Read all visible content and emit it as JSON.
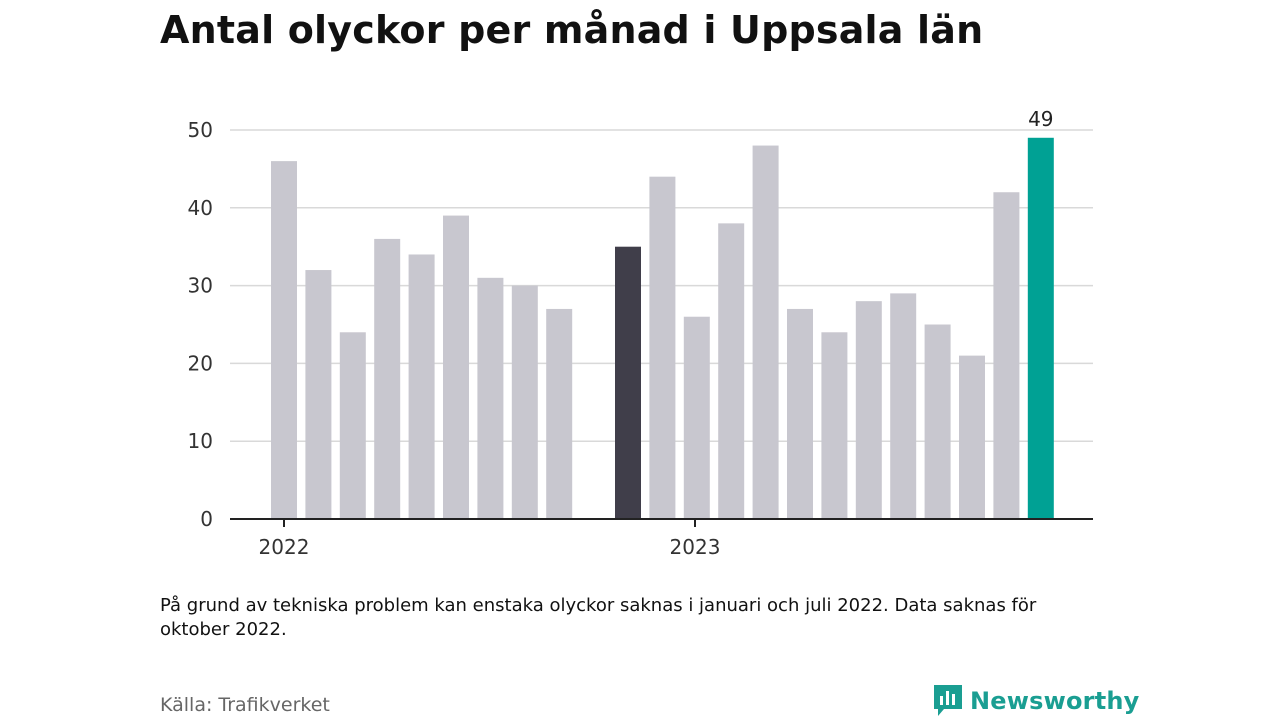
{
  "title": "Antal olyckor per månad i Uppsala län",
  "footnote": "På grund av tekniska problem kan enstaka olyckor saknas i januari och juli 2022. Data saknas för oktober 2022.",
  "source": "Källa: Trafikverket",
  "brand": {
    "name": "Newsworthy",
    "color": "#1a9e92",
    "icon": "newsworthy-logo-icon"
  },
  "chart_data": {
    "type": "bar",
    "ylim": [
      0,
      50
    ],
    "yticks": [
      0,
      10,
      20,
      30,
      40,
      50
    ],
    "grid": true,
    "year_labels": [
      {
        "label": "2022",
        "at_bar": 0
      },
      {
        "label": "2023",
        "at_bar": 12
      }
    ],
    "bars": [
      {
        "month": "2022-01",
        "value": 46
      },
      {
        "month": "2022-02",
        "value": 32
      },
      {
        "month": "2022-03",
        "value": 24
      },
      {
        "month": "2022-04",
        "value": 36
      },
      {
        "month": "2022-05",
        "value": 34
      },
      {
        "month": "2022-06",
        "value": 39
      },
      {
        "month": "2022-07",
        "value": 31
      },
      {
        "month": "2022-08",
        "value": 30
      },
      {
        "month": "2022-09",
        "value": 27
      },
      {
        "month": "2022-10",
        "value": null
      },
      {
        "month": "2022-11",
        "value": 35,
        "highlight": "dark"
      },
      {
        "month": "2022-12",
        "value": 44
      },
      {
        "month": "2023-01",
        "value": 26
      },
      {
        "month": "2023-02",
        "value": 38
      },
      {
        "month": "2023-03",
        "value": 48
      },
      {
        "month": "2023-04",
        "value": 27
      },
      {
        "month": "2023-05",
        "value": 24
      },
      {
        "month": "2023-06",
        "value": 28
      },
      {
        "month": "2023-07",
        "value": 29
      },
      {
        "month": "2023-08",
        "value": 25
      },
      {
        "month": "2023-09",
        "value": 21
      },
      {
        "month": "2023-10",
        "value": 42
      },
      {
        "month": "2023-11",
        "value": 49,
        "highlight": "accent",
        "label": "49"
      }
    ],
    "colors": {
      "default": "#c8c7cf",
      "dark": "#403e4a",
      "accent": "#00a194",
      "grid": "#d9d9d9",
      "axis": "#222222"
    }
  }
}
